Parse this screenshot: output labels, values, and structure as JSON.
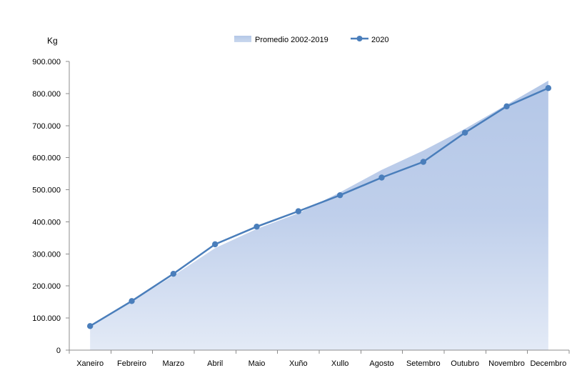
{
  "chart_data": {
    "type": "area",
    "ylabel": "Kg",
    "categories": [
      "Xaneiro",
      "Febreiro",
      "Marzo",
      "Abril",
      "Maio",
      "Xuño",
      "Xullo",
      "Agosto",
      "Setembro",
      "Outubro",
      "Novembro",
      "Decembro"
    ],
    "series": [
      {
        "name": "Promedio 2002-2019",
        "type": "area",
        "color": "#b4c7e7",
        "values": [
          75000,
          152000,
          232000,
          318000,
          378000,
          427000,
          492000,
          562000,
          622000,
          690000,
          765000,
          840000
        ]
      },
      {
        "name": "2020",
        "type": "line",
        "color": "#4a7ebb",
        "values": [
          75000,
          153000,
          238000,
          330000,
          385000,
          433000,
          483000,
          538000,
          587000,
          678000,
          760000,
          817000
        ]
      }
    ],
    "ylim": [
      0,
      900000
    ],
    "yticks": [
      0,
      100000,
      200000,
      300000,
      400000,
      500000,
      600000,
      700000,
      800000,
      900000
    ],
    "ytick_labels": [
      "0",
      "100.000",
      "200.000",
      "300.000",
      "400.000",
      "500.000",
      "600.000",
      "700.000",
      "800.000",
      "900.000"
    ],
    "grid": false,
    "legend_position": "top"
  }
}
